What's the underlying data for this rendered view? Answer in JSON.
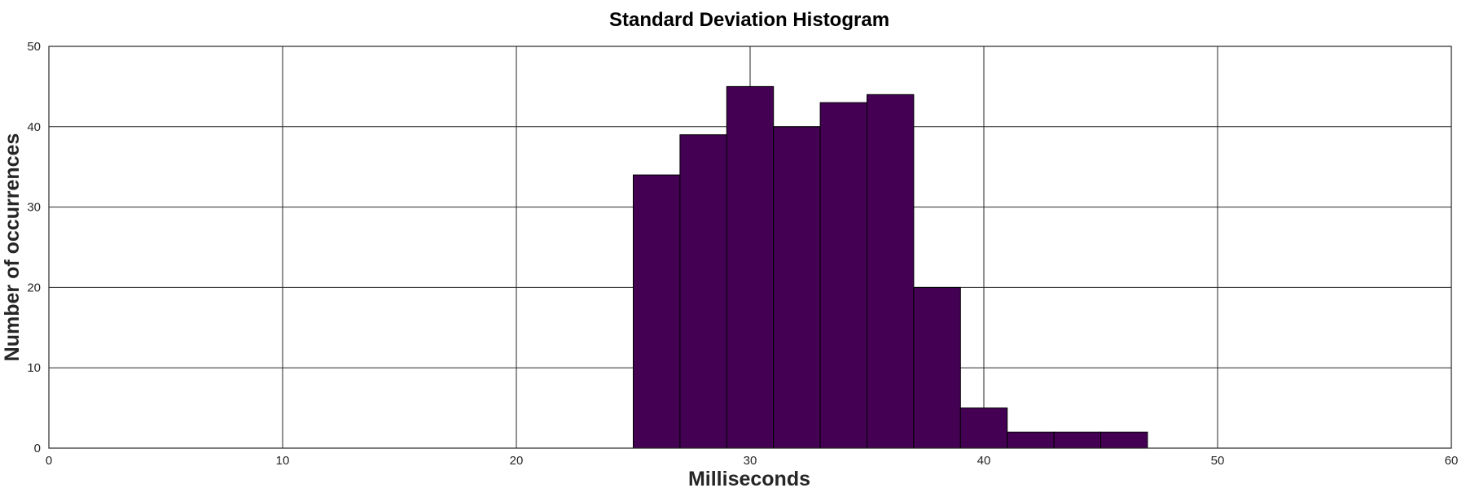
{
  "chart_data": {
    "type": "bar",
    "title": "Standard Deviation Histogram",
    "xlabel": "Milliseconds",
    "ylabel": "Number of occurrences",
    "xlim": [
      0,
      60
    ],
    "ylim": [
      0,
      50
    ],
    "xticks": [
      0,
      10,
      20,
      30,
      40,
      50,
      60
    ],
    "yticks": [
      0,
      10,
      20,
      30,
      40,
      50
    ],
    "grid": true,
    "bar_color": "#440154",
    "bins": [
      {
        "start": 25,
        "end": 27,
        "count": 34
      },
      {
        "start": 27,
        "end": 29,
        "count": 39
      },
      {
        "start": 29,
        "end": 31,
        "count": 45
      },
      {
        "start": 31,
        "end": 33,
        "count": 40
      },
      {
        "start": 33,
        "end": 35,
        "count": 43
      },
      {
        "start": 35,
        "end": 37,
        "count": 44
      },
      {
        "start": 37,
        "end": 39,
        "count": 20
      },
      {
        "start": 39,
        "end": 41,
        "count": 5
      },
      {
        "start": 41,
        "end": 43,
        "count": 2
      },
      {
        "start": 43,
        "end": 45,
        "count": 2
      },
      {
        "start": 45,
        "end": 47,
        "count": 2
      }
    ]
  }
}
